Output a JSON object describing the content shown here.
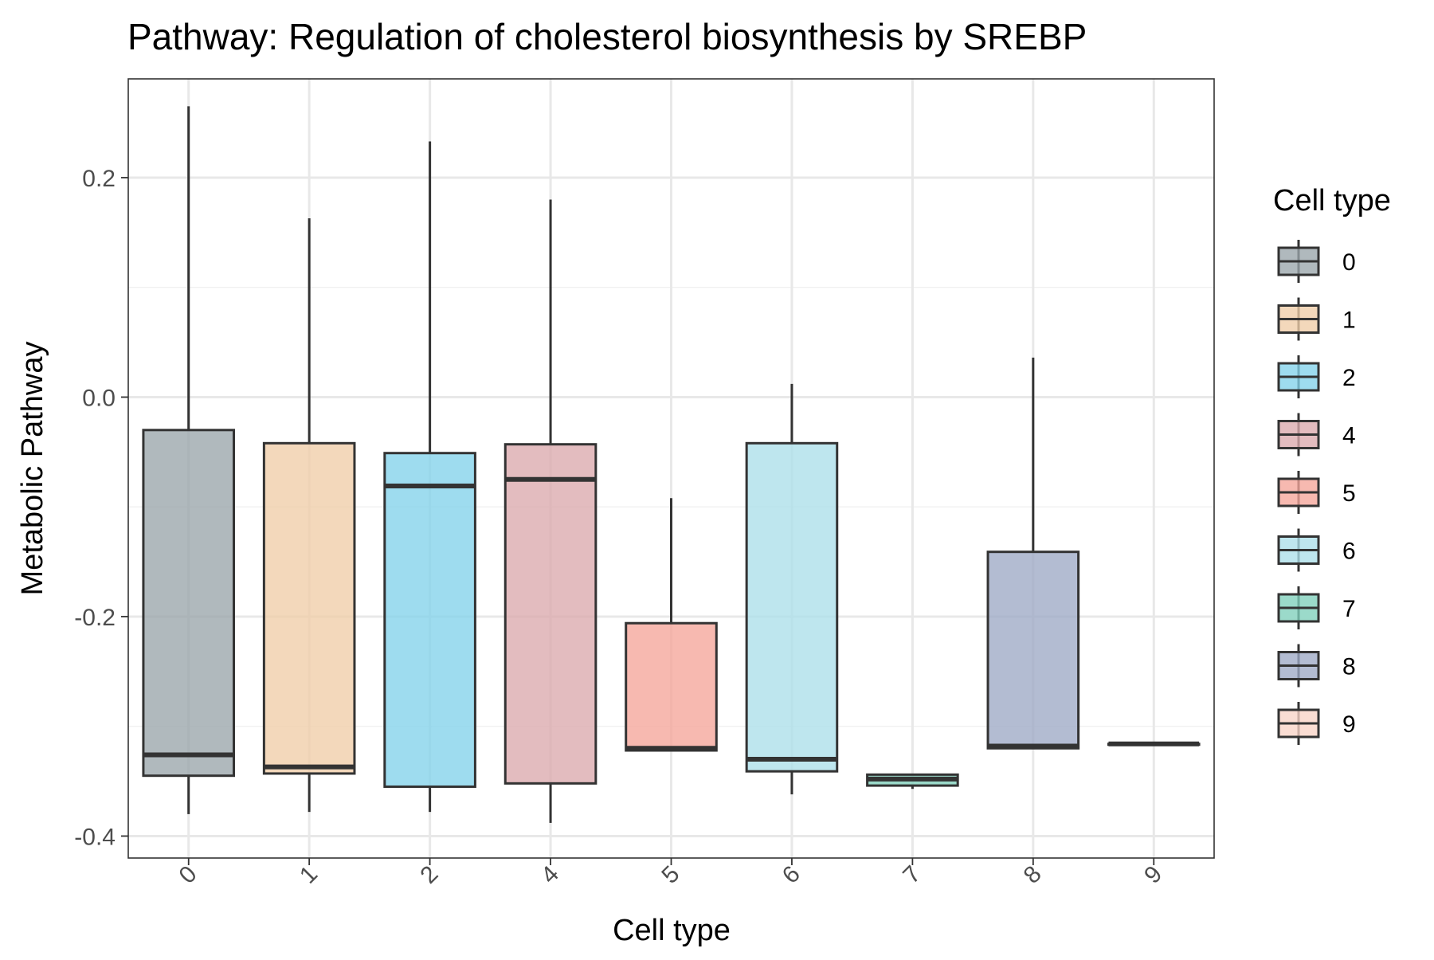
{
  "chart_data": {
    "type": "box",
    "title": "Pathway: Regulation of cholesterol biosynthesis by SREBP",
    "xlabel": "Cell type",
    "ylabel": "Metabolic Pathway",
    "ylim": [
      -0.42,
      0.29
    ],
    "yticks": [
      -0.4,
      -0.2,
      0.0,
      0.2
    ],
    "ytick_labels": [
      "-0.4",
      "-0.2",
      "0.0",
      "0.2"
    ],
    "grid": true,
    "legend": {
      "title": "Cell type",
      "placement": "right"
    },
    "categories": [
      "0",
      "1",
      "2",
      "4",
      "5",
      "6",
      "7",
      "8",
      "9"
    ],
    "boxes": [
      {
        "category": "0",
        "color": "#9aa5aa",
        "whisker_low": -0.38,
        "q1": -0.345,
        "median": -0.326,
        "q3": -0.03,
        "whisker_high": 0.265
      },
      {
        "category": "1",
        "color": "#f0cda8",
        "whisker_low": -0.378,
        "q1": -0.343,
        "median": -0.337,
        "q3": -0.042,
        "whisker_high": 0.163
      },
      {
        "category": "2",
        "color": "#83d2ea",
        "whisker_low": -0.378,
        "q1": -0.355,
        "median": -0.081,
        "q3": -0.051,
        "whisker_high": 0.233
      },
      {
        "category": "4",
        "color": "#dba9ad",
        "whisker_low": -0.388,
        "q1": -0.352,
        "median": -0.075,
        "q3": -0.043,
        "whisker_high": 0.18
      },
      {
        "category": "5",
        "color": "#f5a59a",
        "whisker_low": -0.323,
        "q1": -0.322,
        "median": -0.32,
        "q3": -0.206,
        "whisker_high": -0.092
      },
      {
        "category": "6",
        "color": "#acdfe9",
        "whisker_low": -0.362,
        "q1": -0.341,
        "median": -0.33,
        "q3": -0.042,
        "whisker_high": 0.012
      },
      {
        "category": "7",
        "color": "#7fd0bb",
        "whisker_low": -0.357,
        "q1": -0.354,
        "median": -0.348,
        "q3": -0.344,
        "whisker_high": -0.344
      },
      {
        "category": "8",
        "color": "#9da9c5",
        "whisker_low": -0.32,
        "q1": -0.32,
        "median": -0.318,
        "q3": -0.141,
        "whisker_high": 0.036
      },
      {
        "category": "9",
        "color": "#f9d4c6",
        "whisker_low": -0.316,
        "q1": -0.316,
        "median": -0.316,
        "q3": -0.316,
        "whisker_high": -0.316
      }
    ]
  }
}
